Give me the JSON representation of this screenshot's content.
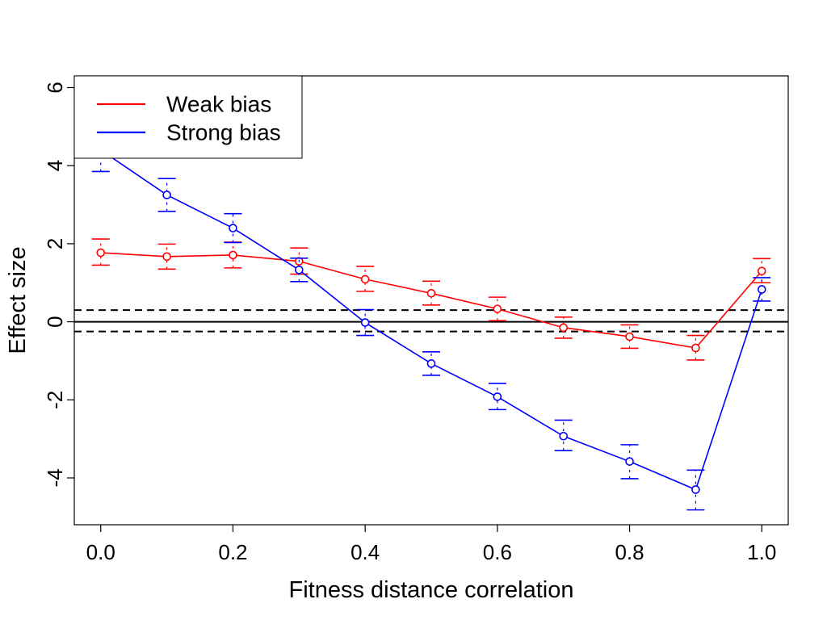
{
  "chart_data": {
    "type": "line",
    "title": "",
    "xlabel": "Fitness distance correlation",
    "ylabel": "Effect size",
    "xlim": [
      -0.04,
      1.04
    ],
    "ylim": [
      -5.2,
      6.3
    ],
    "x_ticks": [
      0.0,
      0.2,
      0.4,
      0.6,
      0.8,
      1.0
    ],
    "x_tick_labels": [
      "0.0",
      "0.2",
      "0.4",
      "0.6",
      "0.8",
      "1.0"
    ],
    "y_ticks": [
      -4,
      -2,
      0,
      2,
      4,
      6
    ],
    "y_tick_labels": [
      "-4",
      "-2",
      "0",
      "2",
      "4",
      "6"
    ],
    "grid": false,
    "legend_position": "top-left",
    "reference_lines": [
      {
        "y": 0,
        "style": "solid"
      },
      {
        "y": 0.3,
        "style": "dashed"
      },
      {
        "y": -0.25,
        "style": "dashed"
      }
    ],
    "x": [
      0.0,
      0.1,
      0.2,
      0.3,
      0.4,
      0.5,
      0.6,
      0.7,
      0.8,
      0.9,
      1.0
    ],
    "series": [
      {
        "name": "Weak bias",
        "color": "#ff0000",
        "values": [
          1.77,
          1.67,
          1.71,
          1.55,
          1.09,
          0.73,
          0.33,
          -0.15,
          -0.38,
          -0.67,
          1.3
        ],
        "ci_low": [
          1.45,
          1.35,
          1.38,
          1.22,
          0.78,
          0.43,
          0.03,
          -0.42,
          -0.68,
          -0.98,
          1.0
        ],
        "ci_high": [
          2.12,
          1.99,
          2.04,
          1.89,
          1.42,
          1.04,
          0.63,
          0.12,
          -0.08,
          -0.35,
          1.62
        ]
      },
      {
        "name": "Strong bias",
        "color": "#0000ff",
        "values": [
          4.4,
          3.25,
          2.4,
          1.33,
          -0.02,
          -1.07,
          -1.92,
          -2.93,
          -3.58,
          -4.3,
          0.83
        ],
        "ci_low": [
          3.85,
          2.83,
          2.03,
          1.03,
          -0.35,
          -1.37,
          -2.25,
          -3.3,
          -4.02,
          -4.82,
          0.53
        ],
        "ci_high": [
          4.95,
          3.67,
          2.77,
          1.63,
          0.31,
          -0.77,
          -1.58,
          -2.52,
          -3.15,
          -3.8,
          1.13
        ]
      }
    ]
  }
}
